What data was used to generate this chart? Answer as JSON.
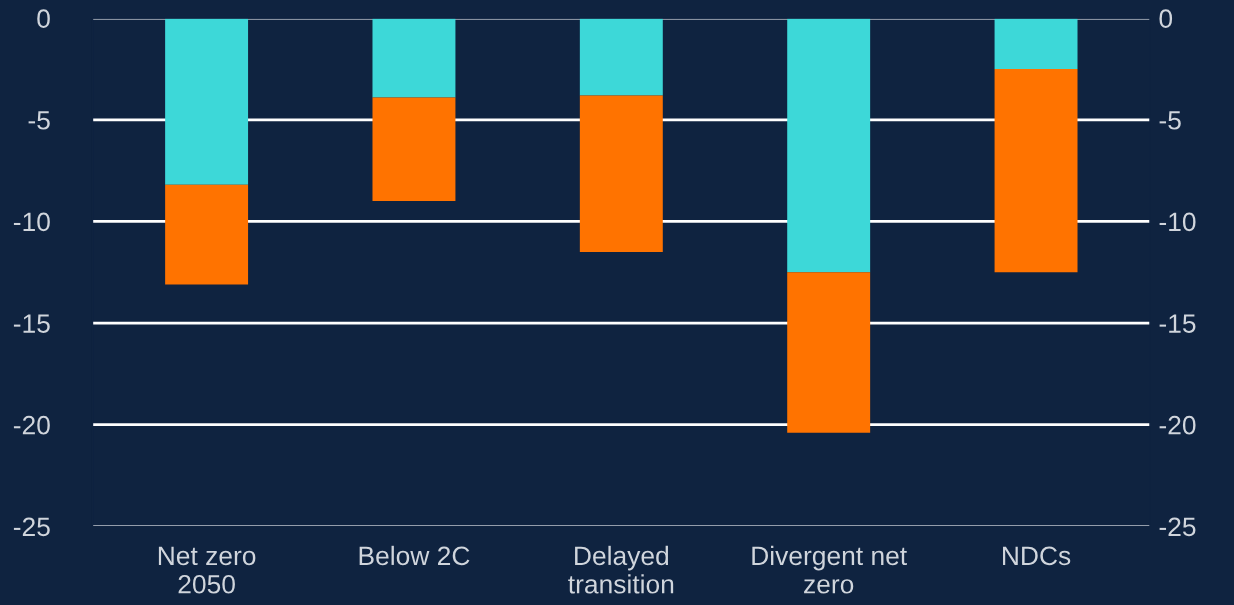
{
  "chart_data": {
    "type": "bar",
    "stacked": true,
    "categories": [
      "Net zero\n2050",
      "Below 2C",
      "Delayed\ntransition",
      "Divergent net\nzero",
      "NDCs"
    ],
    "series": [
      {
        "color": "#3dd8d8",
        "values": [
          -8.2,
          -3.9,
          -3.8,
          -12.5,
          -2.5
        ]
      },
      {
        "color": "#ff7300",
        "values": [
          -4.9,
          -5.1,
          -7.7,
          -7.9,
          -10.0
        ]
      }
    ],
    "ylim": [
      -25,
      0
    ],
    "yticks": [
      0,
      -5,
      -10,
      -15,
      -20,
      -25
    ],
    "y2lim": [
      -25,
      0
    ],
    "y2ticks": [
      0,
      -5,
      -10,
      -15,
      -20,
      -25
    ],
    "grid": "y"
  }
}
